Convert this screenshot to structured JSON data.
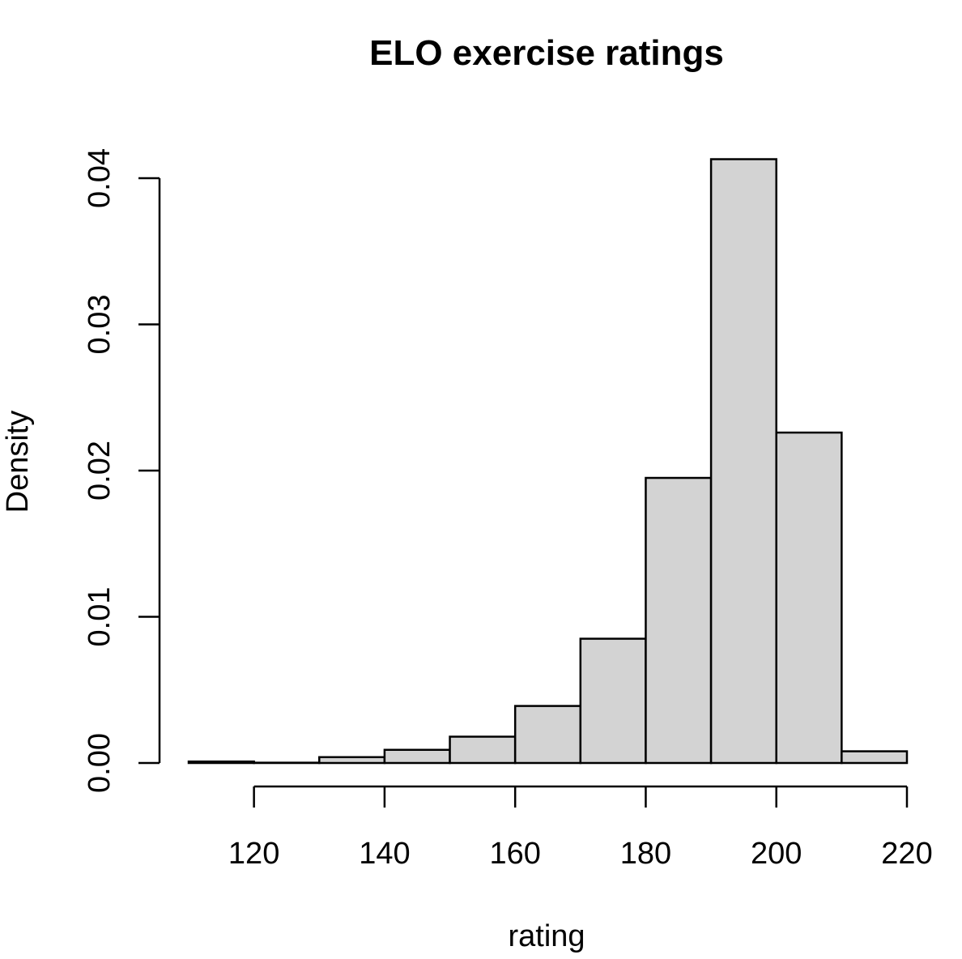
{
  "chart_data": {
    "type": "bar",
    "title": "ELO exercise ratings",
    "xlabel": "rating",
    "ylabel": "Density",
    "bin_edges": [
      110,
      120,
      130,
      140,
      150,
      160,
      170,
      180,
      190,
      200,
      210,
      220
    ],
    "values": [
      0.0001,
      2e-05,
      0.0004,
      0.0009,
      0.0018,
      0.0039,
      0.0085,
      0.0195,
      0.0413,
      0.0226,
      0.0008
    ],
    "xlim": [
      110,
      220
    ],
    "ylim": [
      0,
      0.04
    ],
    "x_ticks": [
      120,
      140,
      160,
      180,
      200,
      220
    ],
    "x_tick_labels": [
      "120",
      "140",
      "160",
      "180",
      "200",
      "220"
    ],
    "y_ticks": [
      0,
      0.01,
      0.02,
      0.03,
      0.04
    ],
    "y_tick_labels": [
      "0.00",
      "0.01",
      "0.02",
      "0.03",
      "0.04"
    ],
    "grid": false,
    "bar_color": "#d3d3d3",
    "edge_color": "#000000"
  }
}
